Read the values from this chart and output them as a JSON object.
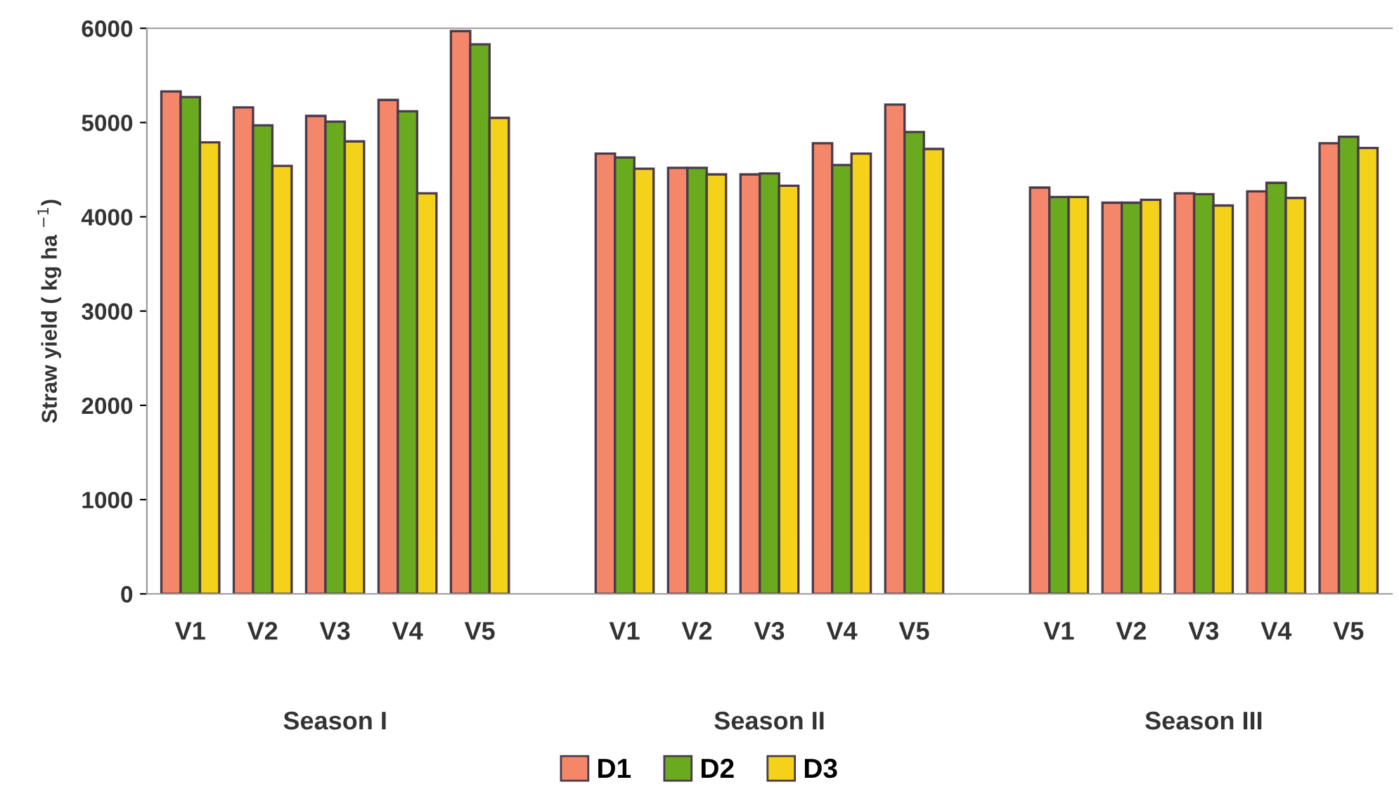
{
  "chart_data": {
    "type": "bar",
    "ylabel": "Straw yield ( kg ha $^{−1}$)",
    "categories": [
      "V1",
      "V2",
      "V3",
      "V4",
      "V5",
      null,
      "V1",
      "V2",
      "V3",
      "V4",
      "V5",
      null,
      "V1",
      "V2",
      "V3",
      "V4",
      "V5"
    ],
    "series": [
      {
        "name": "D1",
        "color": "#f4876a",
        "values": [
          5330,
          5160,
          5070,
          5240,
          5970,
          null,
          4670,
          4520,
          4450,
          4780,
          5190,
          null,
          4310,
          4150,
          4250,
          4270,
          4780
        ]
      },
      {
        "name": "D2",
        "color": "#6aaa1e",
        "values": [
          5270,
          4970,
          5010,
          5120,
          5830,
          null,
          4630,
          4520,
          4460,
          4550,
          4900,
          null,
          4210,
          4150,
          4240,
          4360,
          4850
        ]
      },
      {
        "name": "D3",
        "color": "#f5d21a",
        "values": [
          4790,
          4540,
          4800,
          4250,
          5050,
          null,
          4510,
          4450,
          4330,
          4670,
          4720,
          null,
          4210,
          4180,
          4120,
          4200,
          4730
        ]
      }
    ],
    "annotations": [
      "Season I",
      "Season II",
      "Season III"
    ],
    "ylim": [
      0,
      6000
    ],
    "yticks": [
      0,
      1000,
      2000,
      3000,
      4000,
      5000,
      6000
    ],
    "grid": false,
    "legend": "bottom"
  }
}
